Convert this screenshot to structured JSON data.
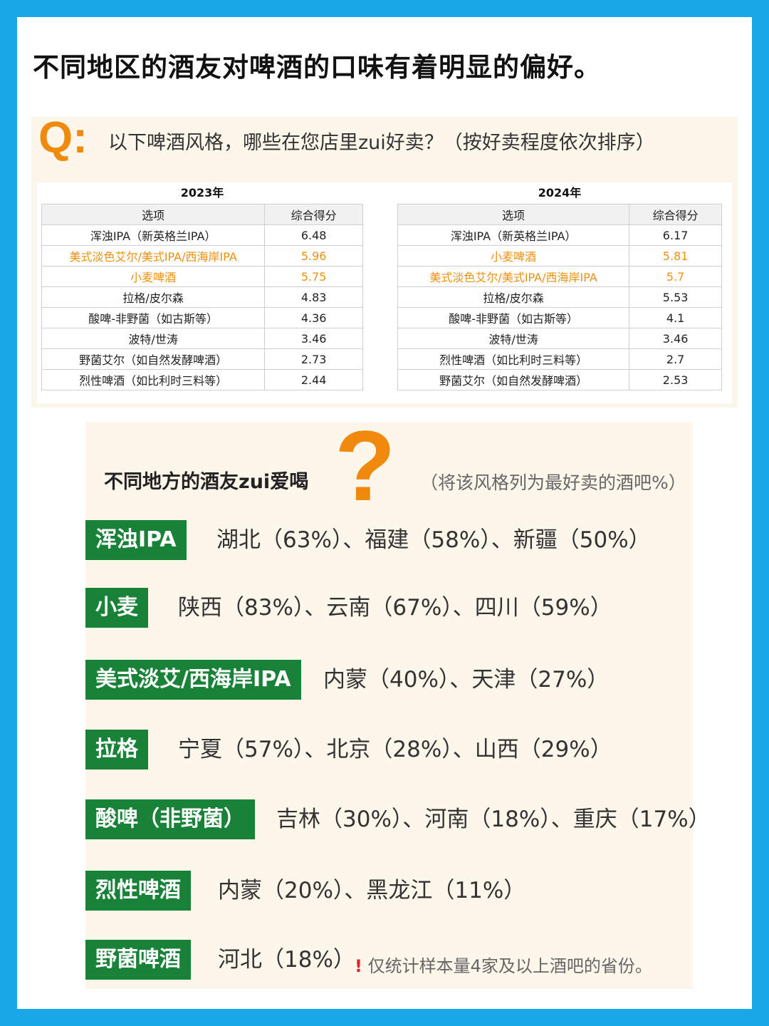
{
  "title": "不同地区的酒友对啤酒的口味有着明显的偏好。",
  "question": {
    "mark": "Q:",
    "text": "以下啤酒风格，哪些在您店里zui好卖？（按好卖程度依次排序）"
  },
  "highlight_color": "#f0900e",
  "tag_color": "#188238",
  "tables": [
    {
      "year": "2023年",
      "headers": [
        "选项",
        "综合得分"
      ],
      "rows": [
        {
          "option": "浑浊IPA（新英格兰IPA）",
          "score": "6.48",
          "highlight": false
        },
        {
          "option": "美式淡色艾尔/美式IPA/西海岸IPA",
          "score": "5.96",
          "highlight": true
        },
        {
          "option": "小麦啤酒",
          "score": "5.75",
          "highlight": true
        },
        {
          "option": "拉格/皮尔森",
          "score": "4.83",
          "highlight": false
        },
        {
          "option": "酸啤-非野菌（如古斯等）",
          "score": "4.36",
          "highlight": false
        },
        {
          "option": "波特/世涛",
          "score": "3.46",
          "highlight": false
        },
        {
          "option": "野菌艾尔（如自然发酵啤酒）",
          "score": "2.73",
          "highlight": false
        },
        {
          "option": "烈性啤酒（如比利时三料等）",
          "score": "2.44",
          "highlight": false
        }
      ]
    },
    {
      "year": "2024年",
      "headers": [
        "选项",
        "综合得分"
      ],
      "rows": [
        {
          "option": "浑浊IPA（新英格兰IPA）",
          "score": "6.17",
          "highlight": false
        },
        {
          "option": "小麦啤酒",
          "score": "5.81",
          "highlight": true
        },
        {
          "option": "美式淡色艾尔/美式IPA/西海岸IPA",
          "score": "5.7",
          "highlight": true
        },
        {
          "option": "拉格/皮尔森",
          "score": "5.53",
          "highlight": false
        },
        {
          "option": "酸啤-非野菌（如古斯等）",
          "score": "4.1",
          "highlight": false
        },
        {
          "option": "波特/世涛",
          "score": "3.46",
          "highlight": false
        },
        {
          "option": "烈性啤酒（如比利时三料等）",
          "score": "2.7",
          "highlight": false
        },
        {
          "option": "野菌艾尔（如自然发酵啤酒）",
          "score": "2.53",
          "highlight": false
        }
      ]
    }
  ],
  "regional": {
    "heading": "不同地方的酒友zui爱喝",
    "big_mark": "?",
    "subheading": "（将该风格列为最好卖的酒吧%）",
    "items": [
      {
        "style": "浑浊IPA",
        "regions": "湖北（63%）、福建（58%）、新疆（50%）"
      },
      {
        "style": "小麦",
        "regions": "陕西（83%）、云南（67%）、四川（59%）"
      },
      {
        "style": "美式淡艾/西海岸IPA",
        "regions": "内蒙（40%）、天津（27%）"
      },
      {
        "style": "拉格",
        "regions": "宁夏（57%）、北京（28%）、山西（29%）"
      },
      {
        "style": "酸啤（非野菌）",
        "regions": "吉林（30%）、河南（18%）、重庆（17%）"
      },
      {
        "style": "烈性啤酒",
        "regions": "内蒙（20%）、黑龙江（11%）"
      },
      {
        "style": "野菌啤酒",
        "regions": "河北（18%）"
      }
    ],
    "note_mark": "!",
    "note": "仅统计样本量4家及以上酒吧的省份。"
  }
}
